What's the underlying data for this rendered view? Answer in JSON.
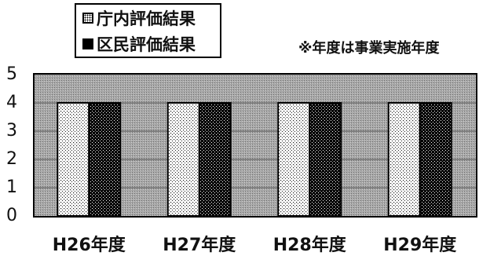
{
  "chart_data": {
    "type": "bar",
    "categories": [
      "H26年度",
      "H27年度",
      "H28年度",
      "H29年度"
    ],
    "series": [
      {
        "name": "庁内評価結果",
        "values": [
          4,
          4,
          4,
          4
        ],
        "pattern": "light-dots"
      },
      {
        "name": "区民評価結果",
        "values": [
          4,
          4,
          4,
          4
        ],
        "pattern": "dark-dots"
      }
    ],
    "ylim": [
      0,
      5
    ],
    "yticks": [
      "0",
      "1",
      "2",
      "3",
      "4",
      "5"
    ],
    "grid": true,
    "legend_position": "top-left",
    "note": "※年度は事業実施年度"
  }
}
